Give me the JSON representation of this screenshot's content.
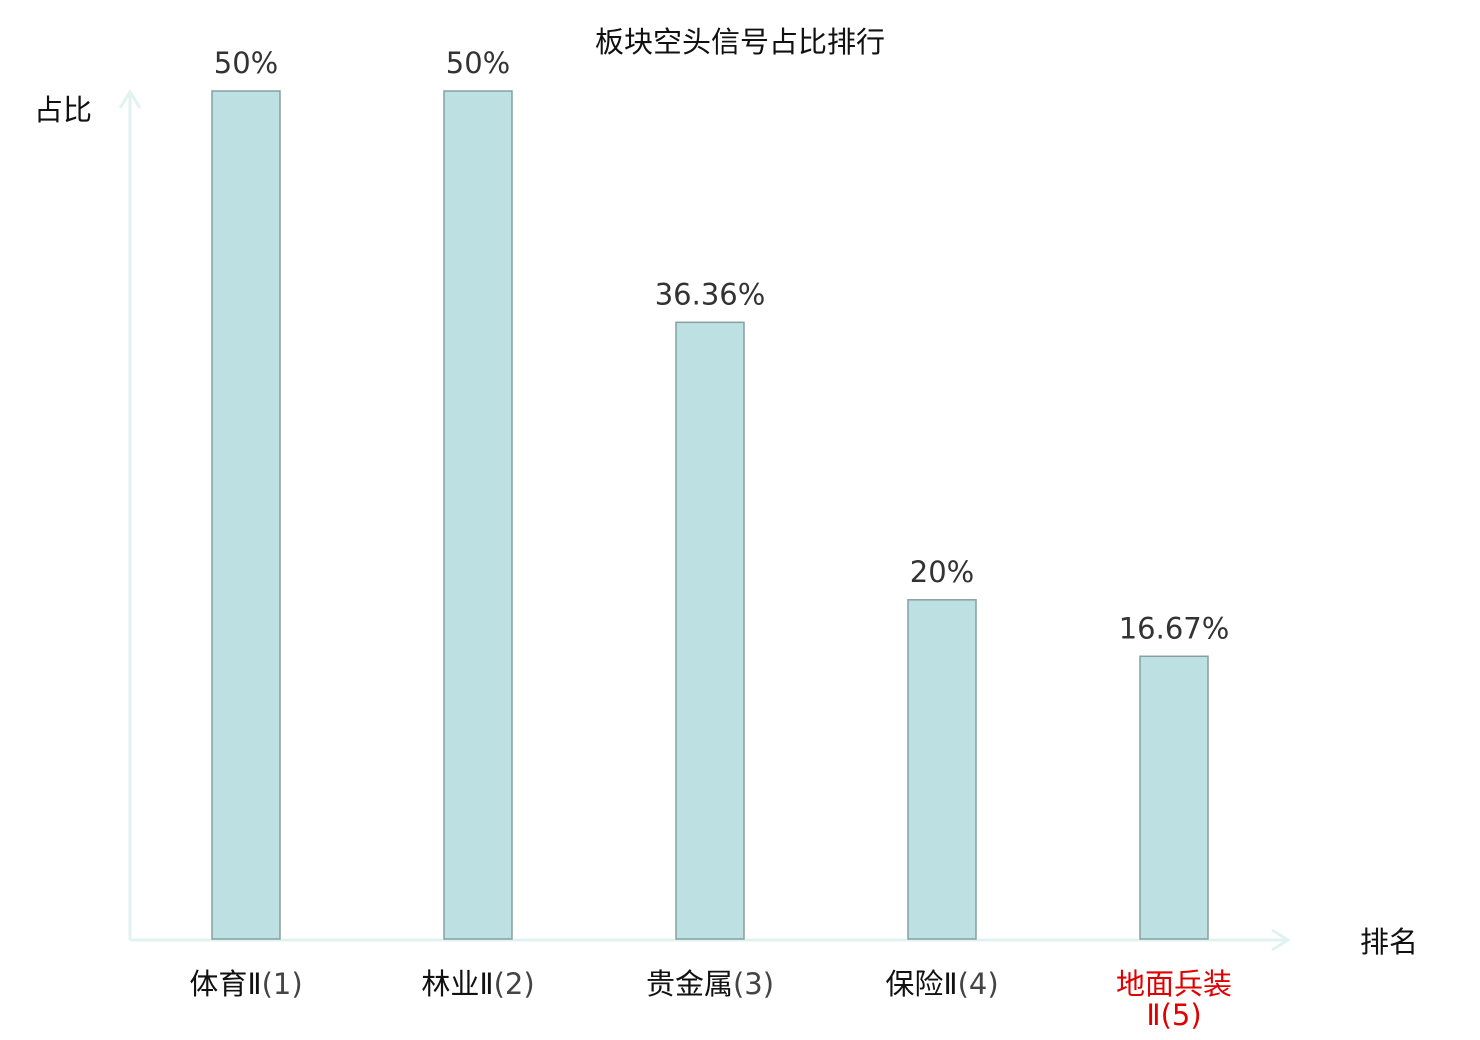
{
  "chart_data": {
    "type": "bar",
    "title": "板块空头信号占比排行",
    "xlabel": "排名",
    "ylabel": "占比",
    "ylim": [
      0,
      50
    ],
    "grid": false,
    "categories": [
      {
        "name": "体育Ⅱ",
        "rank": "(1)",
        "highlight": false
      },
      {
        "name": "林业Ⅱ",
        "rank": "(2)",
        "highlight": false
      },
      {
        "name": "贵金属",
        "rank": "(3)",
        "highlight": false
      },
      {
        "name": "保险Ⅱ",
        "rank": "(4)",
        "highlight": false
      },
      {
        "name": "地面兵装",
        "name2": "Ⅱ",
        "rank": "(5)",
        "highlight": true
      }
    ],
    "values": [
      50,
      50,
      36.36,
      20,
      16.67
    ],
    "value_labels": [
      "50%",
      "50%",
      "36.36%",
      "20%",
      "16.67%"
    ],
    "colors": {
      "bar_fill": "#bde0e2",
      "bar_stroke": "#879fa1",
      "axis": "#e0f3f1",
      "highlight_text": "#e00000",
      "normal_text": "#111111"
    }
  }
}
